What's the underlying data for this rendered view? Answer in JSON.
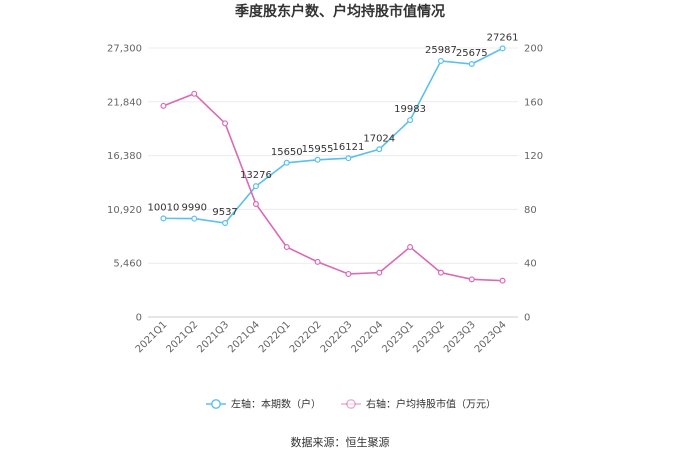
{
  "chart_data": {
    "type": "line",
    "title": "季度股东户数、户均持股市值情况",
    "categories": [
      "2021Q1",
      "2021Q2",
      "2021Q3",
      "2021Q4",
      "2022Q1",
      "2022Q2",
      "2022Q3",
      "2022Q4",
      "2023Q1",
      "2023Q2",
      "2023Q3",
      "2023Q4"
    ],
    "left_axis": {
      "ticks": [
        "0",
        "5,460",
        "10,920",
        "16,380",
        "21,840",
        "27,300"
      ],
      "ylim": [
        0,
        27300
      ]
    },
    "right_axis": {
      "ticks": [
        "0",
        "40",
        "80",
        "120",
        "160",
        "200"
      ],
      "ylim": [
        0,
        200
      ]
    },
    "series": [
      {
        "name": "左轴：本期数（户）",
        "axis": "left",
        "color": "#5bc0eb",
        "values": [
          10010,
          9990,
          9537,
          13276,
          15650,
          15955,
          16121,
          17024,
          19983,
          25987,
          25675,
          27261
        ],
        "labels": [
          "10010",
          "9990",
          "9537",
          "13276",
          "15650",
          "15955",
          "16121",
          "17024",
          "19983",
          "25987",
          "25675",
          "27261"
        ]
      },
      {
        "name": "右轴：户均持股市值（万元）",
        "axis": "right",
        "color": "#d96bb5",
        "values": [
          157,
          166,
          144,
          84,
          52,
          41,
          32,
          33,
          52,
          33,
          28,
          27
        ]
      }
    ],
    "grid": true,
    "legend_position": "bottom"
  },
  "source": "数据来源：恒生聚源"
}
